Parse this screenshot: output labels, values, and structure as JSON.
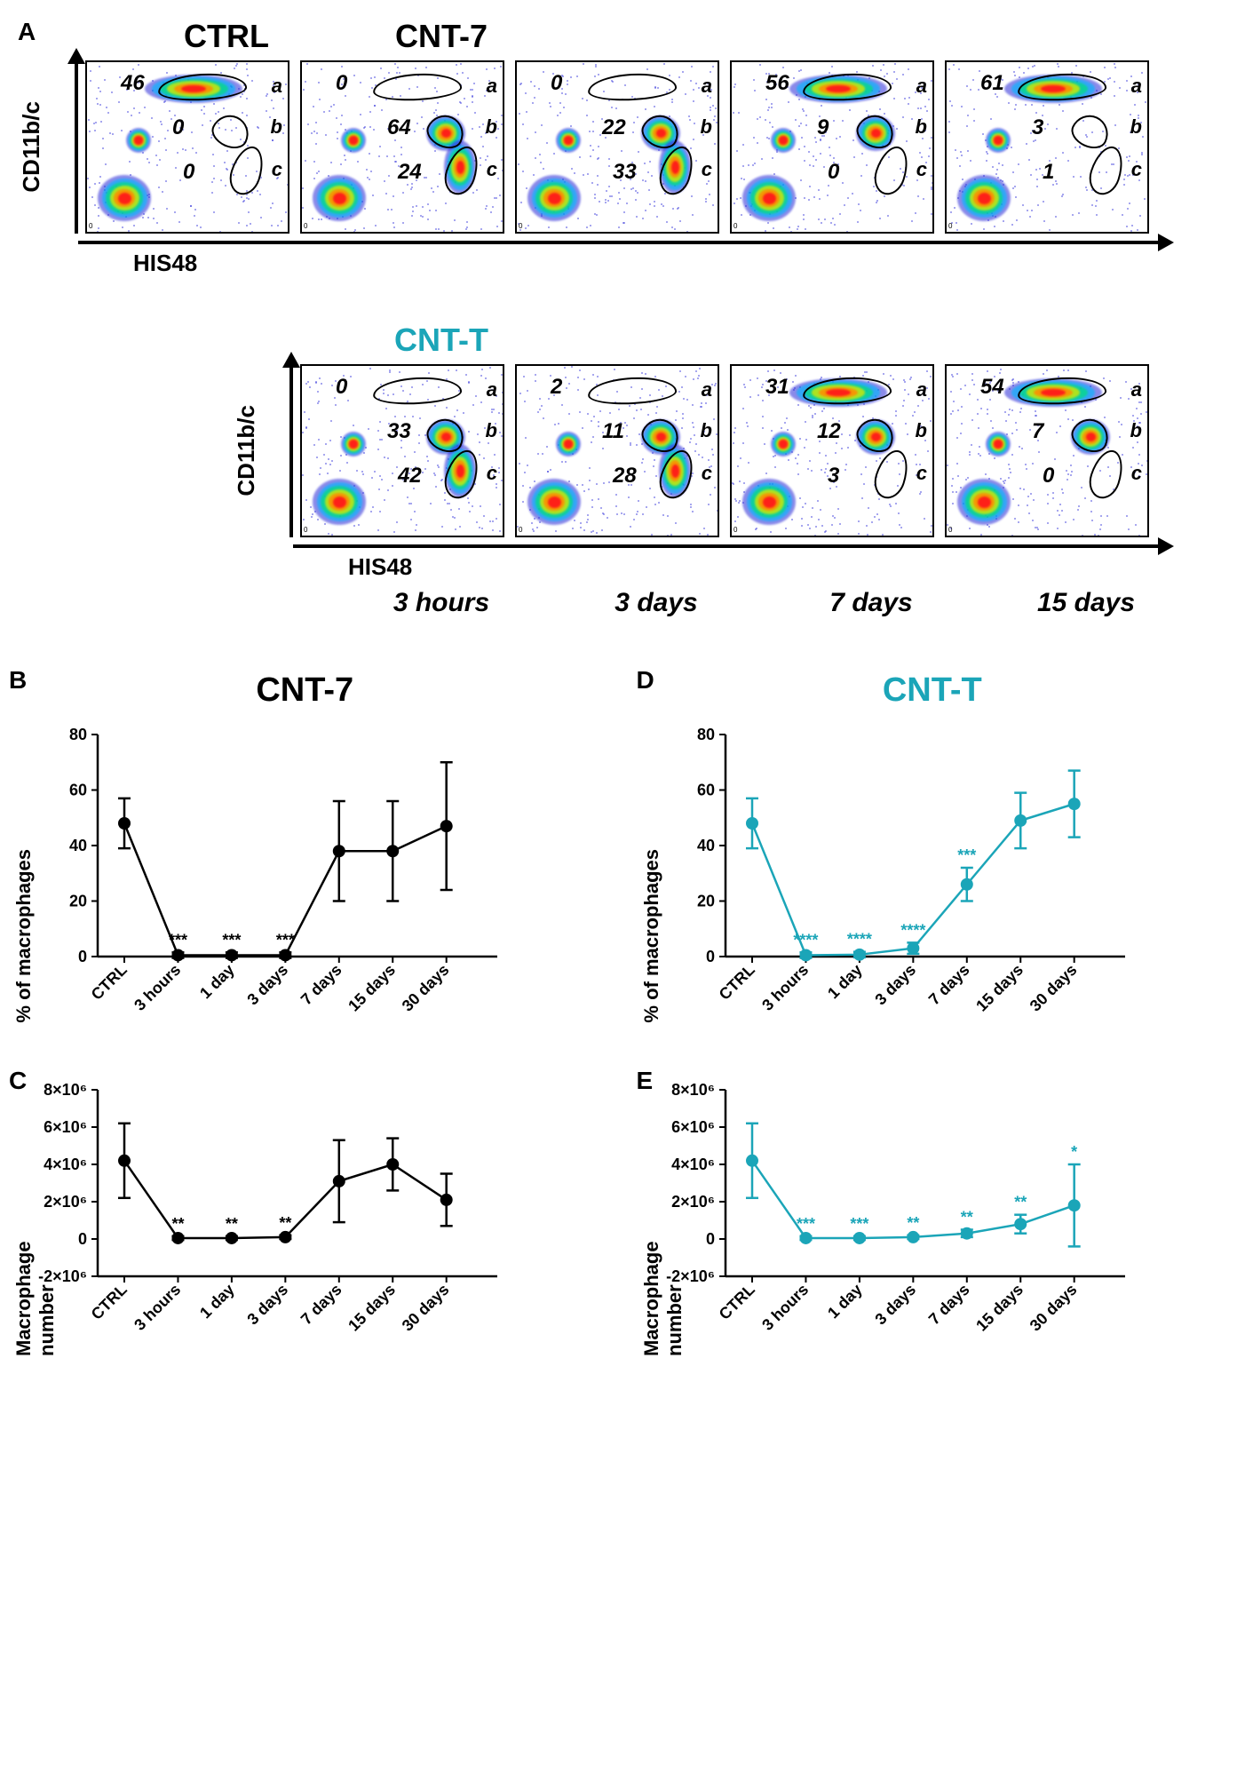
{
  "panelA": {
    "label": "A",
    "y_axis": "CD11b/c",
    "x_axis": "HIS48",
    "row1_title_ctrl": "CTRL",
    "row1_title_cnt7": "CNT-7",
    "row2_title": "CNT-T",
    "row2_color": "#1ba5b8",
    "timepoints": [
      "3 hours",
      "3 days",
      "7 days",
      "15 days"
    ],
    "gates": [
      "a",
      "b",
      "c"
    ],
    "row_cnt7": [
      {
        "a": 46,
        "b": 0,
        "c": 0
      },
      {
        "a": 0,
        "b": 64,
        "c": 24
      },
      {
        "a": 0,
        "b": 22,
        "c": 33
      },
      {
        "a": 56,
        "b": 9,
        "c": 0
      },
      {
        "a": 61,
        "b": 3,
        "c": 1
      }
    ],
    "row_cntt": [
      {
        "a": 0,
        "b": 33,
        "c": 42
      },
      {
        "a": 2,
        "b": 11,
        "c": 28
      },
      {
        "a": 31,
        "b": 12,
        "c": 3
      },
      {
        "a": 54,
        "b": 7,
        "c": 0
      }
    ]
  },
  "charts": {
    "x_categories": [
      "CTRL",
      "3 hours",
      "1 day",
      "3 days",
      "7 days",
      "15 days",
      "30 days"
    ],
    "B": {
      "label": "B",
      "title": "CNT-7",
      "color": "#000000",
      "ylabel": "% of macrophages",
      "ylim": [
        0,
        80
      ],
      "ytick_step": 20,
      "y": [
        48,
        0.5,
        0.5,
        0.5,
        38,
        38,
        47
      ],
      "err": [
        9,
        1,
        1,
        1,
        18,
        18,
        23
      ],
      "sig": [
        "",
        "***",
        "***",
        "***",
        "",
        "",
        ""
      ]
    },
    "C": {
      "label": "C",
      "title": "",
      "color": "#000000",
      "ylabel": "Macrophage number",
      "ylim": [
        -2,
        8
      ],
      "ytick_step": 2,
      "y_scale_label": "×10⁶",
      "y": [
        4.2,
        0.05,
        0.05,
        0.1,
        3.1,
        4.0,
        2.1
      ],
      "err": [
        2.0,
        0.1,
        0.1,
        0.1,
        2.2,
        1.4,
        1.4
      ],
      "sig": [
        "",
        "**",
        "**",
        "**",
        "",
        "",
        ""
      ]
    },
    "D": {
      "label": "D",
      "title": "CNT-T",
      "color": "#1ba5b8",
      "ylabel": "% of macrophages",
      "ylim": [
        0,
        80
      ],
      "ytick_step": 20,
      "y": [
        48,
        0.5,
        0.7,
        3,
        26,
        49,
        55
      ],
      "err": [
        9,
        1,
        1,
        2,
        6,
        10,
        12
      ],
      "sig": [
        "",
        "****",
        "****",
        "****",
        "***",
        "",
        ""
      ]
    },
    "E": {
      "label": "E",
      "title": "",
      "color": "#1ba5b8",
      "ylabel": "Macrophage number",
      "ylim": [
        -2,
        8
      ],
      "ytick_step": 2,
      "y_scale_label": "×10⁶",
      "y": [
        4.2,
        0.05,
        0.05,
        0.1,
        0.3,
        0.8,
        1.8
      ],
      "err": [
        2.0,
        0.1,
        0.1,
        0.1,
        0.2,
        0.5,
        2.2
      ],
      "sig": [
        "",
        "***",
        "***",
        "**",
        "**",
        "**",
        "*"
      ]
    }
  }
}
